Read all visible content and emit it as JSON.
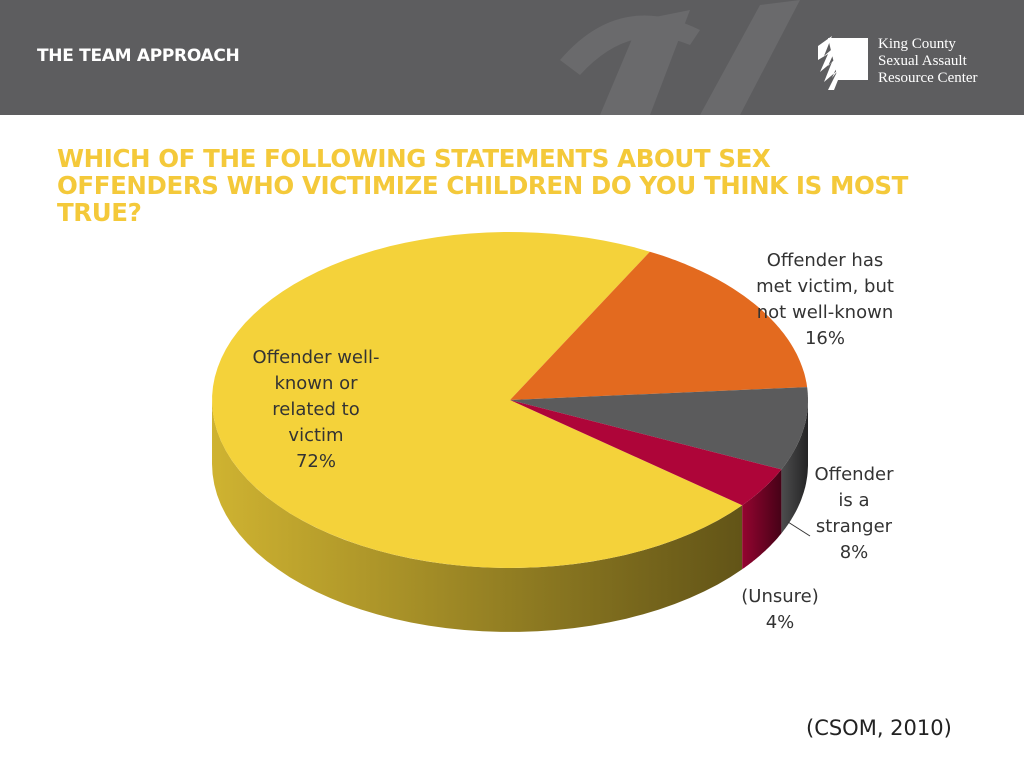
{
  "header": {
    "title": "THE TEAM APPROACH",
    "logo": [
      "King County",
      "Sexual Assault",
      "Resource Center"
    ]
  },
  "chart_data": {
    "type": "pie3d",
    "title": "WHICH OF THE FOLLOWING STATEMENTS ABOUT SEX OFFENDERS WHO VICTIMIZE CHILDREN DO YOU THINK IS MOST TRUE?",
    "categories": [
      "Offender well-known or related to victim",
      "Offender has met victim, but not well-known",
      "Offender is a stranger",
      "(Unsure)"
    ],
    "values": [
      72,
      16,
      8,
      4
    ],
    "value_labels": [
      "72%",
      "16%",
      "8%",
      "4%"
    ],
    "colors": [
      "#f4d23a",
      "#e36a1f",
      "#5b5b5c",
      "#ae0539"
    ]
  },
  "source": "(CSOM, 2010)"
}
